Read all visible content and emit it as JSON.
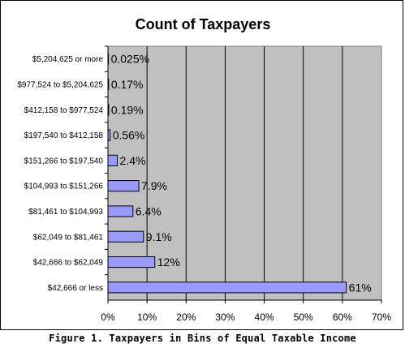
{
  "chart_data": {
    "type": "bar",
    "orientation": "horizontal",
    "title": "Count of Taxpayers",
    "categories": [
      "$5,204,625 or more",
      "$977,524 to $5,204,625",
      "$412,158 to $977,524",
      "$197,540 to $412,158",
      "$151,266 to $197,540",
      "$104,993 to $151,266",
      "$81,461 to $104,993",
      "$62,049 to $81,461",
      "$42,666 to $62,049",
      "$42,666 or less"
    ],
    "values": [
      0.025,
      0.17,
      0.19,
      0.56,
      2.4,
      7.9,
      6.4,
      9.1,
      12,
      61
    ],
    "data_labels": [
      "0.025%",
      "0.17%",
      "0.19%",
      "0.56%",
      "2.4%",
      "7.9%",
      "6.4%",
      "9.1%",
      "12%",
      "61%"
    ],
    "xlim": [
      0,
      70
    ],
    "x_ticks": [
      "0%",
      "10%",
      "20%",
      "30%",
      "40%",
      "50%",
      "60%",
      "70%"
    ],
    "grid": "vertical",
    "plot_background": "#c0c0c0",
    "bar_color": "#9999ff",
    "xlabel": "",
    "ylabel": ""
  },
  "caption": "Figure 1. Taxpayers in Bins of Equal Taxable Income"
}
